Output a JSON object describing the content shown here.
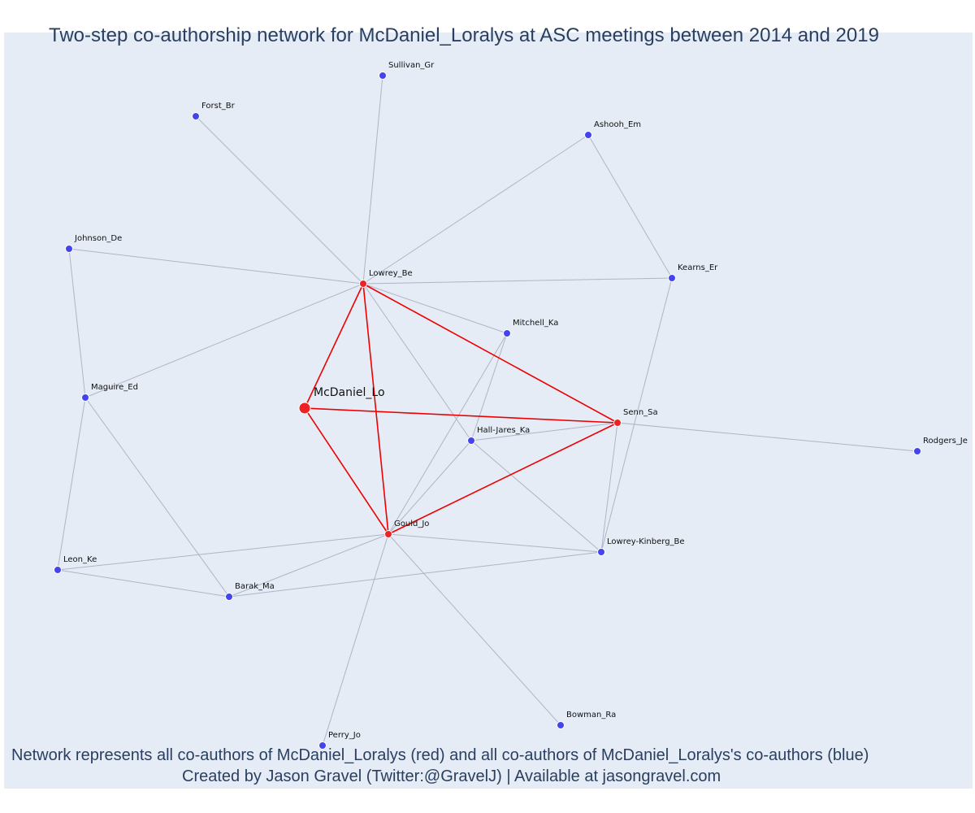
{
  "title": "Two-step co-authorship network for McDaniel_Loralys at ASC meetings between 2014 and 2019",
  "caption_line1": "Network represents all co-authors of McDaniel_Loralys (red) and all co-authors of McDaniel_Loralys's co-authors (blue)",
  "caption_line2": "Created by Jason Gravel (Twitter:@GravelJ) | Available at jasongravel.com",
  "colors": {
    "background": "#e5ecf6",
    "first_step": "#ee2222",
    "second_step": "#4444ee",
    "edge_first": "#ee0000",
    "edge_second": "#b0b4c4"
  },
  "nodes": [
    {
      "id": "McDaniel_Lo",
      "step": "focal"
    },
    {
      "id": "Lowrey_Be",
      "step": "first"
    },
    {
      "id": "Gould_Jo",
      "step": "first"
    },
    {
      "id": "Senn_Sa",
      "step": "first"
    },
    {
      "id": "Sullivan_Gr",
      "step": "second"
    },
    {
      "id": "Forst_Br",
      "step": "second"
    },
    {
      "id": "Ashooh_Em",
      "step": "second"
    },
    {
      "id": "Johnson_De",
      "step": "second"
    },
    {
      "id": "Kearns_Er",
      "step": "second"
    },
    {
      "id": "Mitchell_Ka",
      "step": "second"
    },
    {
      "id": "Maguire_Ed",
      "step": "second"
    },
    {
      "id": "Hall-Jares_Ka",
      "step": "second"
    },
    {
      "id": "Rodgers_Je",
      "step": "second"
    },
    {
      "id": "Lowrey-Kinberg_Be",
      "step": "second"
    },
    {
      "id": "Leon_Ke",
      "step": "second"
    },
    {
      "id": "Barak_Ma",
      "step": "second"
    },
    {
      "id": "Bowman_Ra",
      "step": "second"
    },
    {
      "id": "Perry_Jo",
      "step": "second"
    }
  ],
  "edges": [
    [
      "McDaniel_Lo",
      "Lowrey_Be",
      "first"
    ],
    [
      "McDaniel_Lo",
      "Gould_Jo",
      "first"
    ],
    [
      "McDaniel_Lo",
      "Senn_Sa",
      "first"
    ],
    [
      "Lowrey_Be",
      "Gould_Jo",
      "first"
    ],
    [
      "Lowrey_Be",
      "Senn_Sa",
      "first"
    ],
    [
      "Gould_Jo",
      "Senn_Sa",
      "first"
    ],
    [
      "Lowrey_Be",
      "Sullivan_Gr",
      "second"
    ],
    [
      "Lowrey_Be",
      "Forst_Br",
      "second"
    ],
    [
      "Lowrey_Be",
      "Ashooh_Em",
      "second"
    ],
    [
      "Lowrey_Be",
      "Johnson_De",
      "second"
    ],
    [
      "Lowrey_Be",
      "Kearns_Er",
      "second"
    ],
    [
      "Lowrey_Be",
      "Mitchell_Ka",
      "second"
    ],
    [
      "Lowrey_Be",
      "Maguire_Ed",
      "second"
    ],
    [
      "Lowrey_Be",
      "Hall-Jares_Ka",
      "second"
    ],
    [
      "Ashooh_Em",
      "Kearns_Er",
      "second"
    ],
    [
      "Johnson_De",
      "Maguire_Ed",
      "second"
    ],
    [
      "Kearns_Er",
      "Lowrey-Kinberg_Be",
      "second"
    ],
    [
      "Mitchell_Ka",
      "Gould_Jo",
      "second"
    ],
    [
      "Mitchell_Ka",
      "Hall-Jares_Ka",
      "second"
    ],
    [
      "Maguire_Ed",
      "Leon_Ke",
      "second"
    ],
    [
      "Maguire_Ed",
      "Barak_Ma",
      "second"
    ],
    [
      "Hall-Jares_Ka",
      "Senn_Sa",
      "second"
    ],
    [
      "Hall-Jares_Ka",
      "Gould_Jo",
      "second"
    ],
    [
      "Hall-Jares_Ka",
      "Lowrey-Kinberg_Be",
      "second"
    ],
    [
      "Senn_Sa",
      "Rodgers_Je",
      "second"
    ],
    [
      "Senn_Sa",
      "Lowrey-Kinberg_Be",
      "second"
    ],
    [
      "Gould_Jo",
      "Leon_Ke",
      "second"
    ],
    [
      "Gould_Jo",
      "Barak_Ma",
      "second"
    ],
    [
      "Gould_Jo",
      "Lowrey-Kinberg_Be",
      "second"
    ],
    [
      "Gould_Jo",
      "Bowman_Ra",
      "second"
    ],
    [
      "Gould_Jo",
      "Perry_Jo",
      "second"
    ],
    [
      "Leon_Ke",
      "Barak_Ma",
      "second"
    ],
    [
      "Barak_Ma",
      "Lowrey-Kinberg_Be",
      "second"
    ]
  ]
}
